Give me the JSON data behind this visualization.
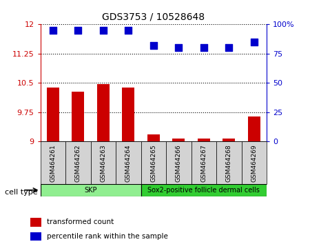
{
  "title": "GDS3753 / 10528648",
  "samples": [
    "GSM464261",
    "GSM464262",
    "GSM464263",
    "GSM464264",
    "GSM464265",
    "GSM464266",
    "GSM464267",
    "GSM464268",
    "GSM464269"
  ],
  "transformed_counts": [
    10.38,
    10.27,
    10.47,
    10.38,
    9.18,
    9.08,
    9.07,
    9.08,
    9.65
  ],
  "percentile_ranks": [
    95,
    95,
    95,
    95,
    82,
    80,
    80,
    80,
    85
  ],
  "ylim_left": [
    9,
    12
  ],
  "ylim_right": [
    0,
    100
  ],
  "yticks_left": [
    9,
    9.75,
    10.5,
    11.25,
    12
  ],
  "yticks_right": [
    0,
    25,
    50,
    75,
    100
  ],
  "ytick_labels_left": [
    "9",
    "9.75",
    "10.5",
    "11.25",
    "12"
  ],
  "ytick_labels_right": [
    "0",
    "25",
    "50",
    "75",
    "100%"
  ],
  "left_axis_color": "#cc0000",
  "right_axis_color": "#0000cc",
  "bar_color": "#cc0000",
  "dot_color": "#0000cc",
  "cell_types": [
    {
      "label": "SKP",
      "start": 0,
      "end": 4,
      "color": "#90ee90"
    },
    {
      "label": "Sox2-positive follicle dermal cells",
      "start": 4,
      "end": 9,
      "color": "#32cd32"
    }
  ],
  "cell_type_label": "cell type",
  "legend_items": [
    {
      "color": "#cc0000",
      "label": "transformed count"
    },
    {
      "color": "#0000cc",
      "label": "percentile rank within the sample"
    }
  ],
  "grid_color": "black",
  "tick_label_color_left": "#cc0000",
  "tick_label_color_right": "#0000cc",
  "bar_width": 0.5,
  "dot_size": 50,
  "ybase": 9
}
